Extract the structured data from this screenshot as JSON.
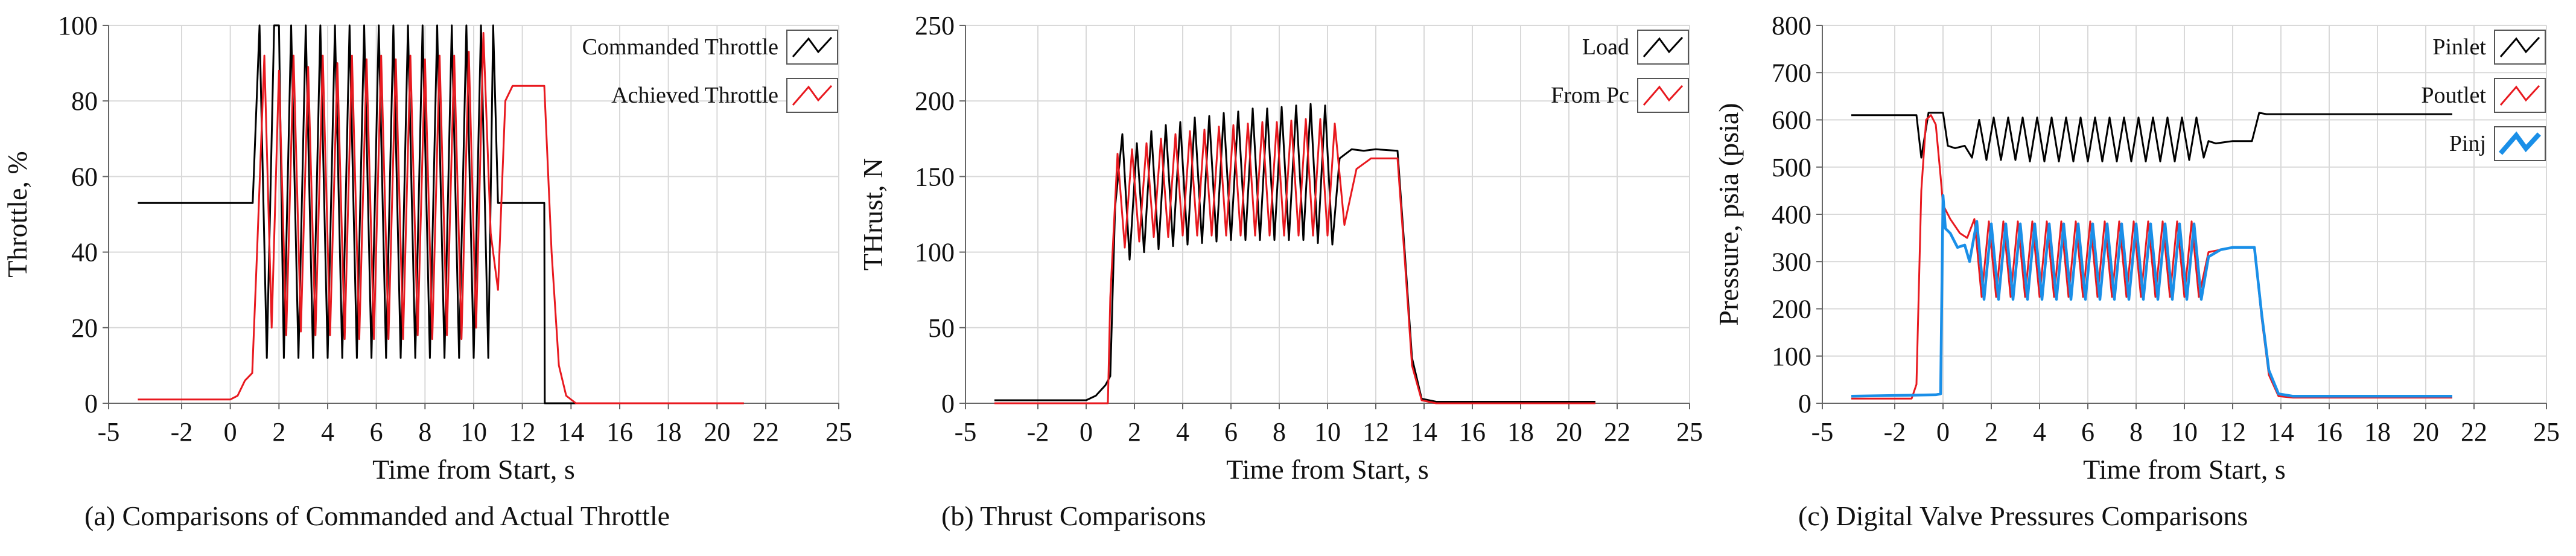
{
  "chart_data": [
    {
      "type": "line",
      "xlabel": "Time from  Start, s",
      "ylabel": "Throttle, %",
      "caption": "(a) Comparisons of Commanded and Actual Throttle",
      "xlim": [
        -5,
        25
      ],
      "ylim": [
        0,
        100
      ],
      "xticks": [
        -5,
        -2,
        0,
        2,
        4,
        6,
        8,
        10,
        12,
        14,
        16,
        18,
        20,
        22,
        25
      ],
      "yticks": [
        0,
        20,
        40,
        60,
        80,
        100
      ],
      "grid": true,
      "legend_position": "top-right",
      "series": [
        {
          "name": "Commanded Throttle",
          "color": "#000000",
          "x": [
            -3.8,
            0.9,
            0.92,
            1.2,
            1.5,
            1.8,
            2.0,
            2.2,
            2.5,
            2.8,
            3.1,
            3.4,
            3.7,
            4.0,
            4.3,
            4.6,
            4.9,
            5.2,
            5.5,
            5.8,
            6.1,
            6.4,
            6.7,
            7.0,
            7.3,
            7.6,
            7.9,
            8.2,
            8.5,
            8.8,
            9.1,
            9.4,
            9.7,
            10.0,
            10.3,
            10.6,
            10.8,
            11.0,
            11.02,
            12.9,
            12.92,
            21.1
          ],
          "y": [
            53,
            53,
            53,
            100,
            12,
            100,
            100,
            12,
            100,
            12,
            100,
            12,
            100,
            12,
            100,
            12,
            100,
            12,
            100,
            12,
            100,
            12,
            100,
            12,
            100,
            12,
            100,
            12,
            100,
            12,
            100,
            12,
            100,
            12,
            100,
            12,
            100,
            53,
            53,
            53,
            0,
            0
          ]
        },
        {
          "name": "Achieved Throttle",
          "color": "#e8191f",
          "x": [
            -3.8,
            0.0,
            0.3,
            0.6,
            0.9,
            1.1,
            1.4,
            1.7,
            2.0,
            2.3,
            2.6,
            2.9,
            3.2,
            3.5,
            3.8,
            4.1,
            4.4,
            4.7,
            5.0,
            5.3,
            5.6,
            5.9,
            6.2,
            6.5,
            6.8,
            7.1,
            7.4,
            7.7,
            8.0,
            8.3,
            8.6,
            8.9,
            9.2,
            9.5,
            9.8,
            10.1,
            10.4,
            10.7,
            11.0,
            11.3,
            11.6,
            12.0,
            12.9,
            13.2,
            13.5,
            13.8,
            14.2,
            21.1
          ],
          "y": [
            1,
            1,
            2,
            6,
            8,
            40,
            92,
            20,
            88,
            18,
            92,
            19,
            89,
            18,
            92,
            18,
            90,
            17,
            92,
            17,
            91,
            17,
            92,
            17,
            91,
            17,
            92,
            18,
            91,
            17,
            92,
            18,
            92,
            17,
            93,
            20,
            98,
            45,
            30,
            80,
            84,
            84,
            84,
            40,
            10,
            2,
            0,
            0
          ]
        }
      ]
    },
    {
      "type": "line",
      "xlabel": "Time from  Start, s",
      "ylabel": "THrust, N",
      "caption": "(b) Thrust Comparisons",
      "xlim": [
        -5,
        25
      ],
      "ylim": [
        0,
        250
      ],
      "xticks": [
        -5,
        -2,
        0,
        2,
        4,
        6,
        8,
        10,
        12,
        14,
        16,
        18,
        20,
        22,
        25
      ],
      "yticks": [
        0,
        50,
        100,
        150,
        200,
        250
      ],
      "grid": true,
      "legend_position": "top-right",
      "series": [
        {
          "name": "Load",
          "color": "#000000",
          "x": [
            -3.8,
            0.0,
            0.4,
            0.8,
            1.0,
            1.2,
            1.5,
            1.8,
            2.1,
            2.4,
            2.7,
            3.0,
            3.3,
            3.6,
            3.9,
            4.2,
            4.5,
            4.8,
            5.1,
            5.4,
            5.7,
            6.0,
            6.3,
            6.6,
            6.9,
            7.2,
            7.5,
            7.8,
            8.1,
            8.4,
            8.7,
            9.0,
            9.3,
            9.6,
            9.9,
            10.2,
            10.5,
            11.0,
            11.5,
            12.0,
            12.9,
            13.2,
            13.5,
            13.9,
            14.5,
            21.1
          ],
          "y": [
            2,
            2,
            5,
            12,
            18,
            130,
            178,
            95,
            172,
            100,
            180,
            102,
            184,
            104,
            186,
            105,
            189,
            106,
            190,
            107,
            192,
            108,
            193,
            108,
            195,
            108,
            195,
            108,
            196,
            108,
            197,
            108,
            198,
            106,
            197,
            105,
            162,
            168,
            167,
            168,
            167,
            100,
            30,
            3,
            1,
            1
          ]
        },
        {
          "name": "From Pc",
          "color": "#e8191f",
          "x": [
            -3.8,
            0.9,
            1.0,
            1.3,
            1.6,
            1.9,
            2.2,
            2.5,
            2.8,
            3.1,
            3.4,
            3.7,
            4.0,
            4.3,
            4.6,
            4.9,
            5.2,
            5.5,
            5.8,
            6.1,
            6.4,
            6.7,
            7.0,
            7.3,
            7.6,
            7.9,
            8.2,
            8.5,
            8.8,
            9.1,
            9.4,
            9.7,
            10.0,
            10.3,
            10.7,
            11.2,
            11.8,
            12.9,
            13.2,
            13.5,
            13.9,
            14.5,
            21.1
          ],
          "y": [
            0,
            0,
            70,
            165,
            103,
            168,
            107,
            172,
            110,
            175,
            110,
            178,
            111,
            180,
            111,
            181,
            111,
            183,
            111,
            184,
            111,
            185,
            111,
            186,
            111,
            186,
            111,
            187,
            111,
            188,
            111,
            188,
            111,
            185,
            118,
            155,
            162,
            162,
            95,
            25,
            2,
            0,
            0
          ]
        }
      ]
    },
    {
      "type": "line",
      "xlabel": "Time from  Start, s",
      "ylabel": "Pressure, psia (psia)",
      "caption": "(c) Digital Valve Pressures Comparisons",
      "xlim": [
        -5,
        25
      ],
      "ylim": [
        0,
        800
      ],
      "xticks": [
        -5,
        -2,
        0,
        2,
        4,
        6,
        8,
        10,
        12,
        14,
        16,
        18,
        20,
        22,
        25
      ],
      "yticks": [
        0,
        100,
        200,
        300,
        400,
        500,
        600,
        700,
        800
      ],
      "grid": true,
      "legend_position": "top-right",
      "series": [
        {
          "name": "Pinlet",
          "color": "#000000",
          "x": [
            -3.8,
            -1.1,
            -0.9,
            -0.6,
            -0.3,
            0.0,
            0.2,
            0.5,
            0.9,
            1.2,
            1.5,
            1.8,
            2.1,
            2.4,
            2.7,
            3.0,
            3.3,
            3.6,
            3.9,
            4.2,
            4.5,
            4.8,
            5.1,
            5.4,
            5.7,
            6.0,
            6.3,
            6.6,
            6.9,
            7.2,
            7.5,
            7.8,
            8.1,
            8.4,
            8.7,
            9.0,
            9.3,
            9.6,
            9.9,
            10.2,
            10.5,
            10.8,
            11.0,
            11.3,
            12.0,
            12.8,
            13.1,
            13.4,
            21.1
          ],
          "y": [
            610,
            610,
            520,
            615,
            615,
            615,
            545,
            540,
            545,
            520,
            600,
            515,
            605,
            515,
            605,
            515,
            605,
            512,
            605,
            512,
            605,
            512,
            605,
            512,
            605,
            512,
            605,
            512,
            605,
            512,
            605,
            512,
            605,
            512,
            605,
            512,
            605,
            512,
            605,
            515,
            605,
            520,
            555,
            550,
            555,
            555,
            615,
            612,
            612
          ]
        },
        {
          "name": "Poutlet",
          "color": "#e8191f",
          "x": [
            -3.8,
            -1.3,
            -1.1,
            -0.9,
            -0.7,
            -0.5,
            -0.3,
            -0.1,
            0.0,
            0.3,
            0.7,
            1.0,
            1.3,
            1.6,
            1.9,
            2.2,
            2.5,
            2.8,
            3.1,
            3.4,
            3.7,
            4.0,
            4.3,
            4.6,
            4.9,
            5.2,
            5.5,
            5.8,
            6.1,
            6.4,
            6.7,
            7.0,
            7.3,
            7.6,
            7.9,
            8.2,
            8.5,
            8.8,
            9.1,
            9.4,
            9.7,
            10.0,
            10.3,
            10.6,
            11.0,
            11.5,
            12.0,
            12.9,
            13.2,
            13.5,
            13.9,
            14.5,
            21.1
          ],
          "y": [
            10,
            10,
            40,
            450,
            600,
            610,
            590,
            480,
            420,
            390,
            360,
            350,
            390,
            225,
            385,
            225,
            385,
            225,
            385,
            225,
            385,
            225,
            385,
            225,
            385,
            225,
            385,
            225,
            385,
            225,
            385,
            225,
            385,
            225,
            385,
            225,
            385,
            225,
            385,
            225,
            385,
            225,
            385,
            225,
            320,
            325,
            330,
            330,
            180,
            60,
            15,
            12,
            12
          ]
        },
        {
          "name": "Pinj",
          "color": "#1a8fe8",
          "x": [
            -3.8,
            -0.3,
            -0.1,
            0.0,
            0.1,
            0.3,
            0.6,
            0.9,
            1.1,
            1.4,
            1.7,
            2.0,
            2.3,
            2.6,
            2.9,
            3.2,
            3.5,
            3.8,
            4.1,
            4.4,
            4.7,
            5.0,
            5.3,
            5.6,
            5.9,
            6.2,
            6.5,
            6.8,
            7.1,
            7.4,
            7.7,
            8.0,
            8.3,
            8.6,
            8.9,
            9.2,
            9.5,
            9.8,
            10.1,
            10.4,
            10.7,
            11.0,
            11.5,
            12.0,
            12.9,
            13.2,
            13.5,
            13.9,
            14.5,
            21.1
          ],
          "y": [
            15,
            18,
            20,
            440,
            370,
            360,
            330,
            335,
            300,
            385,
            220,
            380,
            220,
            380,
            220,
            380,
            220,
            380,
            220,
            380,
            220,
            380,
            220,
            380,
            220,
            380,
            220,
            380,
            220,
            380,
            220,
            380,
            220,
            380,
            220,
            380,
            220,
            380,
            220,
            380,
            220,
            310,
            325,
            330,
            330,
            190,
            70,
            20,
            15,
            15
          ]
        }
      ]
    }
  ]
}
